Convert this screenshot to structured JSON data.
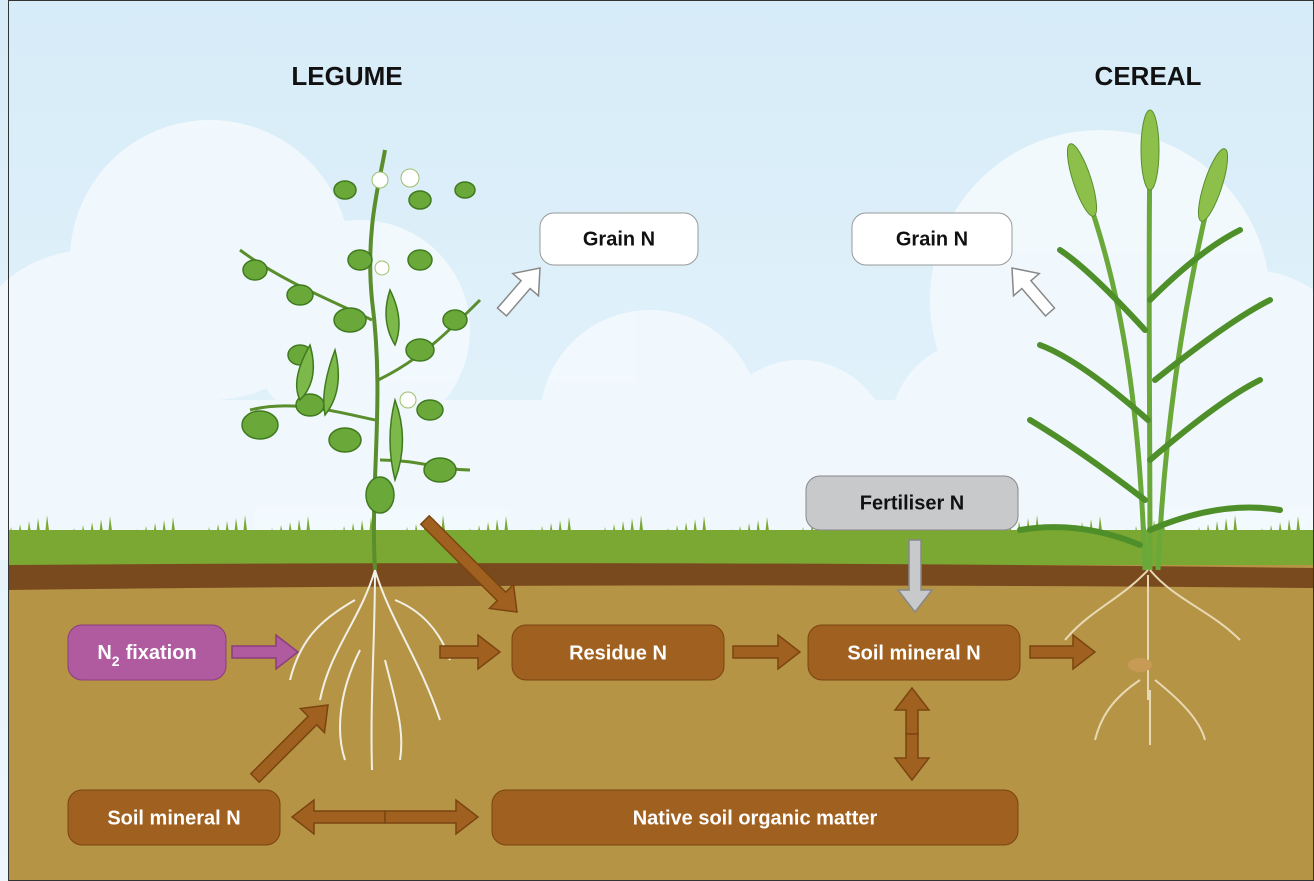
{
  "titles": {
    "legume": "LEGUME",
    "cereal": "CEREAL"
  },
  "nodes": [
    {
      "label": "Grain N"
    },
    {
      "label": "Grain N"
    },
    {
      "label": "Fertiliser N"
    },
    {
      "label_parts": [
        "N",
        "2",
        "fixation"
      ]
    },
    {
      "label": "Residue N"
    },
    {
      "label": "Soil mineral N"
    },
    {
      "label": "Soil mineral N"
    },
    {
      "label": "Native soil organic matter"
    }
  ]
}
